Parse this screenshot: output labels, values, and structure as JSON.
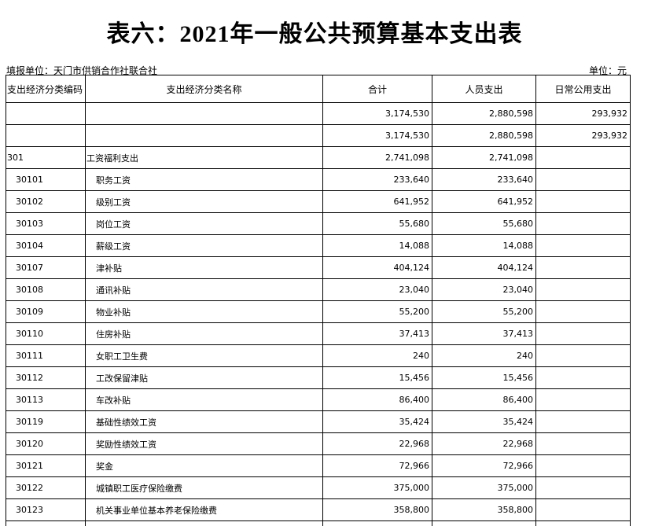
{
  "header": {
    "title": "表六：2021年一般公共预算基本支出表",
    "unit_left": "填报单位：天门市供销合作社联合社",
    "unit_right": "单位：元"
  },
  "table": {
    "columns": [
      "支出经济分类编码",
      "支出经济分类名称",
      "合计",
      "人员支出",
      "日常公用支出"
    ],
    "rows": [
      [
        null,
        null,
        "3,174,530",
        "2,880,598",
        "293,932"
      ],
      [
        null,
        null,
        "3,174,530",
        "2,880,598",
        "293,932"
      ],
      [
        "301",
        "工资福利支出",
        "2,741,098",
        "2,741,098",
        null
      ],
      [
        "30101",
        "职务工资",
        "233,640",
        "233,640",
        null
      ],
      [
        "30102",
        "级别工资",
        "641,952",
        "641,952",
        null
      ],
      [
        "30103",
        "岗位工资",
        "55,680",
        "55,680",
        null
      ],
      [
        "30104",
        "薪级工资",
        "14,088",
        "14,088",
        null
      ],
      [
        "30107",
        "津补贴",
        "404,124",
        "404,124",
        null
      ],
      [
        "30108",
        "通讯补贴",
        "23,040",
        "23,040",
        null
      ],
      [
        "30109",
        "物业补贴",
        "55,200",
        "55,200",
        null
      ],
      [
        "30110",
        "住房补贴",
        "37,413",
        "37,413",
        null
      ],
      [
        "30111",
        "女职工卫生费",
        "240",
        "240",
        null
      ],
      [
        "30112",
        "工改保留津贴",
        "15,456",
        "15,456",
        null
      ],
      [
        "30113",
        "车改补贴",
        "86,400",
        "86,400",
        null
      ],
      [
        "30119",
        "基础性绩效工资",
        "35,424",
        "35,424",
        null
      ],
      [
        "30120",
        "奖励性绩效工资",
        "22,968",
        "22,968",
        null
      ],
      [
        "30121",
        "奖金",
        "72,966",
        "72,966",
        null
      ],
      [
        "30122",
        "城镇职工医疗保险缴费",
        "375,000",
        "375,000",
        null
      ],
      [
        "30123",
        "机关事业单位基本养老保险缴费",
        "358,800",
        "358,800",
        null
      ]
    ]
  }
}
